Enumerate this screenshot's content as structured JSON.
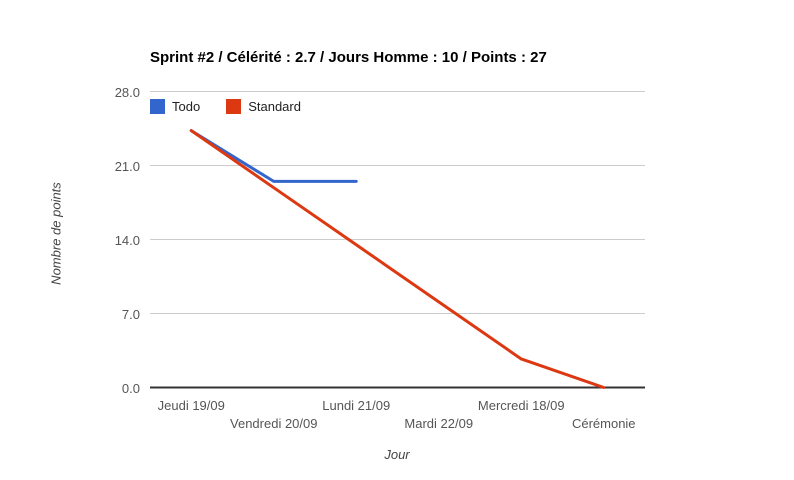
{
  "chart_data": {
    "type": "line",
    "title": "Sprint #2 / Célérité : 2.7 / Jours Homme : 10 / Points : 27",
    "xlabel": "Jour",
    "ylabel": "Nombre de points",
    "categories": [
      "Jeudi 19/09",
      "Vendredi 20/09",
      "Lundi 21/09",
      "Mardi 22/09",
      "Mercredi 18/09",
      "Cérémonie"
    ],
    "ylim": [
      0,
      28
    ],
    "yticks": [
      {
        "v": 0,
        "label": "0.0"
      },
      {
        "v": 7,
        "label": "7.0"
      },
      {
        "v": 14,
        "label": "14.0"
      },
      {
        "v": 21,
        "label": "21.0"
      },
      {
        "v": 28,
        "label": "28.0"
      }
    ],
    "grid": true,
    "legend_position": "top-left-inside",
    "series": [
      {
        "name": "Todo",
        "color": "#3366cc",
        "values": [
          24.3,
          19.5,
          19.5,
          null,
          null,
          null
        ]
      },
      {
        "name": "Standard",
        "color": "#dc3912",
        "values": [
          24.3,
          18.9,
          13.5,
          8.1,
          2.7,
          0
        ]
      }
    ],
    "colors": {
      "gridline": "#cccccc",
      "baseline": "#333333",
      "tick_text": "#555555",
      "axis_title_text": "#444444",
      "legend_text": "#222222",
      "title_text": "#000000"
    }
  }
}
